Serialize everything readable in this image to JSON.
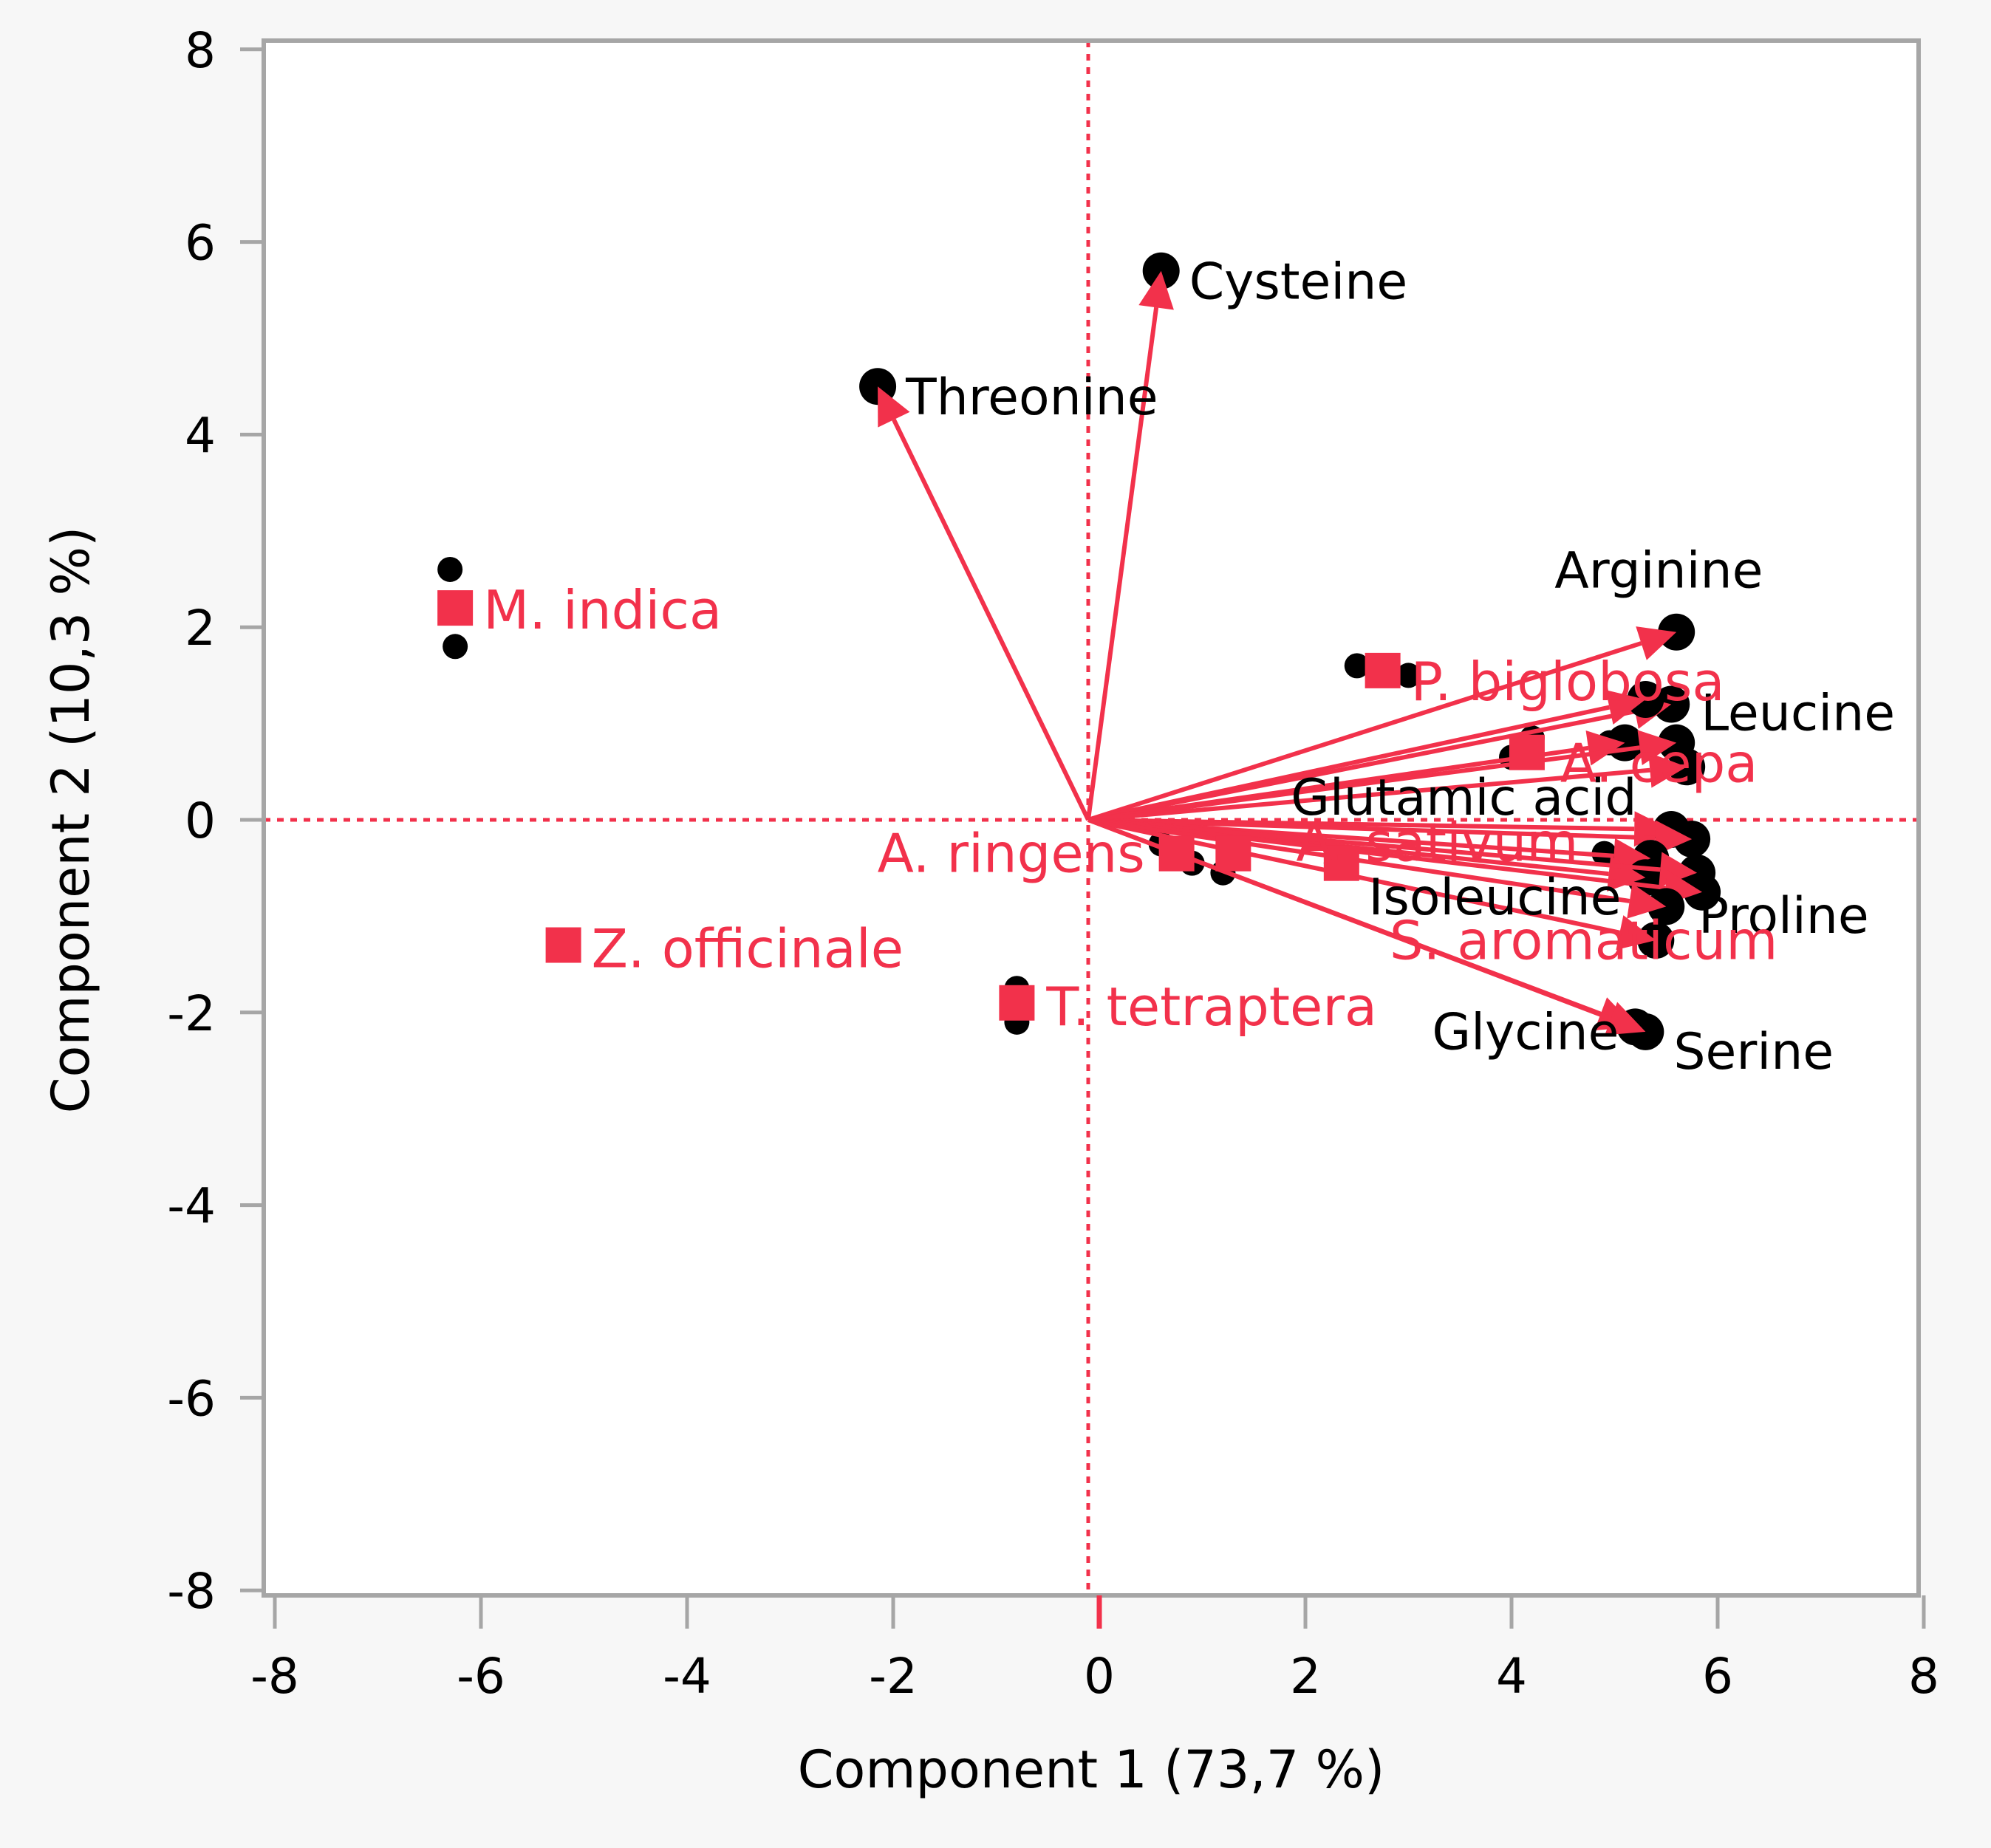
{
  "colors": {
    "background": "#f7f7f7",
    "plot_background": "#ffffff",
    "frame": "#a6a6a6",
    "accent": "#f2314b",
    "points": "#000000"
  },
  "chart_data": {
    "type": "scatter",
    "subtype": "biplot",
    "xlabel": "Component 1  (73,7 %)",
    "ylabel": "Component 2  (10,3 %)",
    "xlim": [
      -8,
      8
    ],
    "ylim": [
      -8,
      8
    ],
    "xticks": [
      "-8",
      "-6",
      "-4",
      "-2",
      "0",
      "2",
      "4",
      "6",
      "8"
    ],
    "yticks": [
      "8",
      "6",
      "4",
      "2",
      "0",
      "-2",
      "-4",
      "-6",
      "-8"
    ],
    "grid": false,
    "origin_lines": "dashed",
    "observations": [
      {
        "x": -6.3,
        "y": 2.6
      },
      {
        "x": -6.25,
        "y": 1.8
      },
      {
        "x": -0.8,
        "y": -1.75
      },
      {
        "x": -0.8,
        "y": -2.1
      },
      {
        "x": 2.5,
        "y": 1.6
      },
      {
        "x": 3.0,
        "y": 1.5
      },
      {
        "x": 4.0,
        "y": 0.65
      },
      {
        "x": 4.2,
        "y": 0.85
      },
      {
        "x": 0.6,
        "y": -0.25
      },
      {
        "x": 0.9,
        "y": -0.45
      },
      {
        "x": 1.2,
        "y": -0.55
      },
      {
        "x": 2.3,
        "y": -0.45
      },
      {
        "x": 4.95,
        "y": 0.8
      },
      {
        "x": 4.9,
        "y": -0.35
      }
    ],
    "variables": [
      {
        "name": "Cysteine",
        "x": 0.6,
        "y": 5.7
      },
      {
        "name": "Threonine",
        "x": -2.15,
        "y": 4.5
      },
      {
        "name": "Arginine",
        "x": 5.6,
        "y": 1.95
      },
      {
        "name": "Leucine",
        "x": 5.55,
        "y": 1.2
      },
      {
        "name": "",
        "x": 5.3,
        "y": 1.25
      },
      {
        "name": "",
        "x": 5.1,
        "y": 0.8
      },
      {
        "name": "",
        "x": 5.6,
        "y": 0.8
      },
      {
        "name": "",
        "x": 5.7,
        "y": 0.55
      },
      {
        "name": "Glutamic acid",
        "x": 5.55,
        "y": -0.1
      },
      {
        "name": "",
        "x": 5.75,
        "y": -0.2
      },
      {
        "name": "",
        "x": 5.35,
        "y": -0.4
      },
      {
        "name": "Isoleucine",
        "x": 5.3,
        "y": -0.6
      },
      {
        "name": "",
        "x": 5.8,
        "y": -0.55
      },
      {
        "name": "Proline",
        "x": 5.85,
        "y": -0.75
      },
      {
        "name": "",
        "x": 5.5,
        "y": -0.9
      },
      {
        "name": "",
        "x": 5.4,
        "y": -1.25
      },
      {
        "name": "Glycine",
        "x": 5.2,
        "y": -2.15
      },
      {
        "name": "Serine",
        "x": 5.3,
        "y": -2.2
      }
    ],
    "samples": [
      {
        "name": "M. indica",
        "x": -6.25,
        "y": 2.2
      },
      {
        "name": "Z. officinale",
        "x": -5.2,
        "y": -1.3
      },
      {
        "name": "T. tetraptera",
        "x": -0.8,
        "y": -1.9
      },
      {
        "name": "P. biglobosa",
        "x": 2.75,
        "y": 1.55
      },
      {
        "name": "A. cepa",
        "x": 4.15,
        "y": 0.7
      },
      {
        "name": "A. ringens",
        "x": 0.75,
        "y": -0.35
      },
      {
        "name": "A. sativum",
        "x": 1.3,
        "y": -0.35
      },
      {
        "name": "S. aromaticum",
        "x": 2.35,
        "y": -0.45
      }
    ]
  }
}
